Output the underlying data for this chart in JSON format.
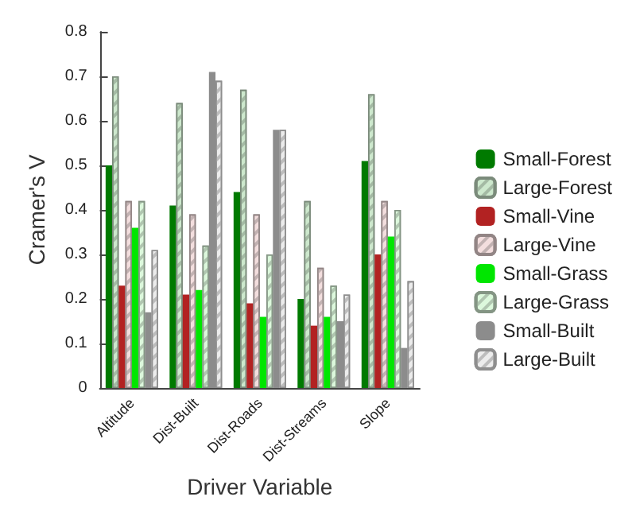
{
  "chart_data": {
    "type": "bar",
    "xlabel": "Driver Variable",
    "ylabel": "Cramer's V",
    "categories": [
      "Altitude",
      "Dist-Built",
      "Dist-Roads",
      "Dist-Streams",
      "Slope"
    ],
    "series": [
      {
        "name": "Small-Forest",
        "color": "#007a00",
        "values": [
          0.5,
          0.41,
          0.44,
          0.2,
          0.51
        ]
      },
      {
        "name": "Large-Forest",
        "color": "#cde8cd",
        "values": [
          0.7,
          0.64,
          0.67,
          0.42,
          0.66
        ]
      },
      {
        "name": "Small-Vine",
        "color": "#b22222",
        "values": [
          0.23,
          0.21,
          0.19,
          0.14,
          0.3
        ]
      },
      {
        "name": "Large-Vine",
        "color": "#f3dede",
        "values": [
          0.42,
          0.39,
          0.39,
          0.27,
          0.42
        ]
      },
      {
        "name": "Small-Grass",
        "color": "#00e600",
        "values": [
          0.36,
          0.22,
          0.16,
          0.16,
          0.34
        ]
      },
      {
        "name": "Large-Grass",
        "color": "#dcf8dc",
        "values": [
          0.42,
          0.32,
          0.3,
          0.23,
          0.4
        ]
      },
      {
        "name": "Small-Built",
        "color": "#8c8c8c",
        "values": [
          0.17,
          0.71,
          0.58,
          0.15,
          0.09
        ]
      },
      {
        "name": "Large-Built",
        "color": "#ececec",
        "values": [
          0.31,
          0.69,
          0.58,
          0.21,
          0.24
        ]
      }
    ],
    "ylim": [
      0,
      0.8
    ],
    "yticks": [
      0,
      0.1,
      0.2,
      0.3,
      0.4,
      0.5,
      0.6,
      0.7,
      0.8
    ],
    "grid": false,
    "legend": "right"
  }
}
